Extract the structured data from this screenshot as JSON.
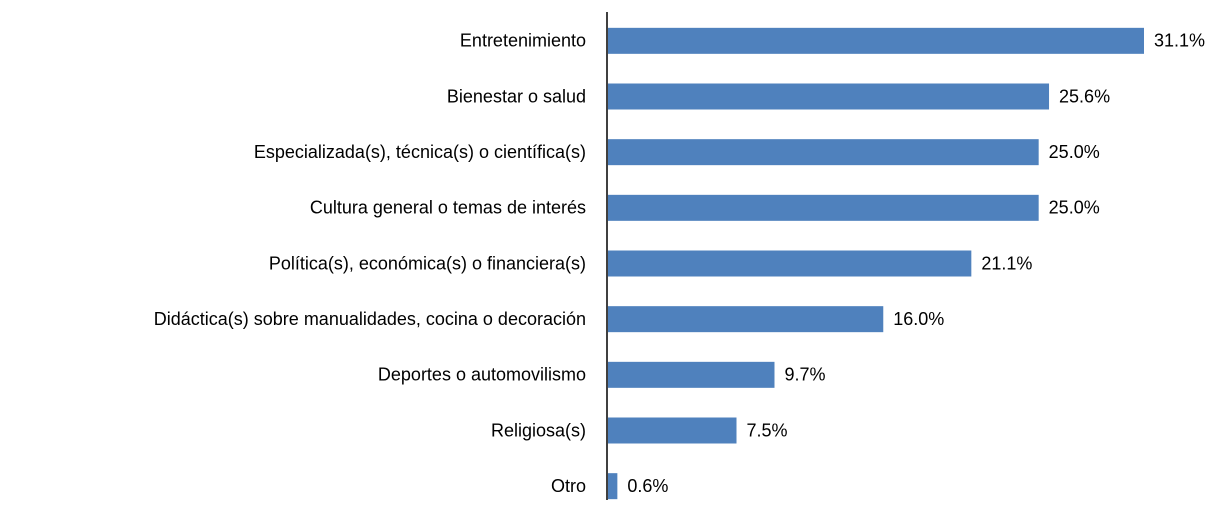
{
  "chart_data": {
    "type": "bar",
    "orientation": "horizontal",
    "categories": [
      "Entretenimiento",
      "Bienestar o salud",
      "Especializada(s), técnica(s) o científica(s)",
      "Cultura general o temas de interés",
      "Política(s), económica(s) o financiera(s)",
      "Didáctica(s) sobre manualidades, cocina o decoración",
      "Deportes o automovilismo",
      "Religiosa(s)",
      "Otro"
    ],
    "values": [
      31.1,
      25.6,
      25.0,
      25.0,
      21.1,
      16.0,
      9.7,
      7.5,
      0.6
    ],
    "value_labels": [
      "31.1%",
      "25.6%",
      "25.0%",
      "25.0%",
      "21.1%",
      "16.0%",
      "9.7%",
      "7.5%",
      "0.6%"
    ],
    "color": "#4f81bd"
  }
}
